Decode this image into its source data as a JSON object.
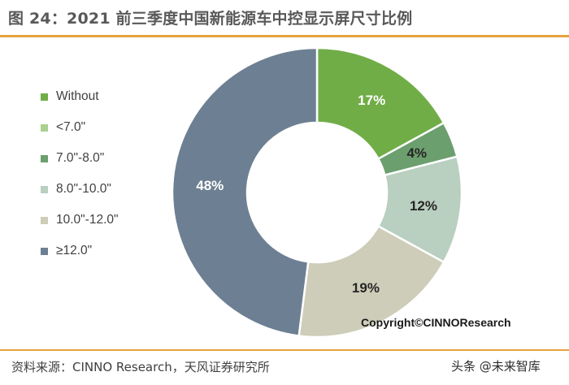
{
  "header": {
    "title": "图 24：2021 前三季度中国新能源车中控显示屏尺寸比例"
  },
  "chart_data": {
    "type": "pie",
    "title": "图 24：2021 前三季度中国新能源车中控显示屏尺寸比例",
    "categories": [
      "Without",
      "<7.0\"",
      "7.0\"-8.0\"",
      "8.0\"-10.0\"",
      "10.0\"-12.0\"",
      "≥12.0\""
    ],
    "values": [
      17,
      0,
      4,
      12,
      19,
      48
    ],
    "value_labels": [
      "17%",
      "",
      "4%",
      "12%",
      "19%",
      "48%"
    ],
    "colors": [
      "#70AD47",
      "#A9D18E",
      "#6C9F6E",
      "#B9CFC0",
      "#CDCDB9",
      "#6D7F92"
    ],
    "donut": true,
    "legend_position": "left"
  },
  "copyright": "Copyright©CINNOResearch",
  "source": "资料来源：CINNO Research，天风证券研究所",
  "watermark": "头条 @未来智库"
}
